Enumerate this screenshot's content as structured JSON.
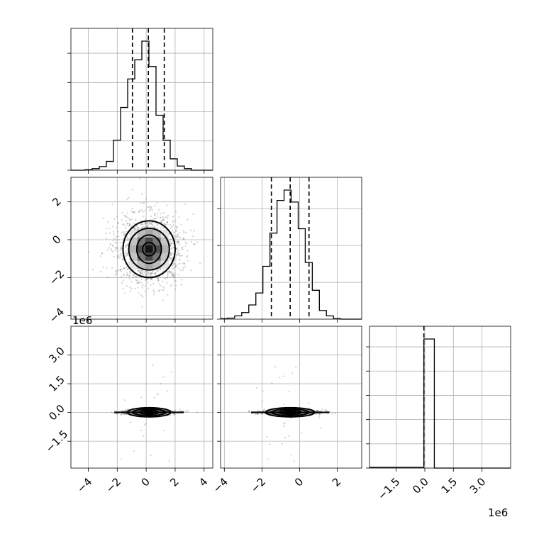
{
  "chart_data": {
    "type": "corner",
    "n_params": 3,
    "grid": true,
    "quantile_lines": "dashed",
    "axes": {
      "p0": {
        "range": [
          -5.2,
          4.6
        ],
        "ticks": [
          "−4",
          "−2",
          "0",
          "2",
          "4"
        ],
        "tick_values": [
          -4,
          -2,
          0,
          2,
          4
        ]
      },
      "p1": {
        "range": [
          -4.2,
          3.3
        ],
        "ticks": [
          "−4",
          "−2",
          "0",
          "2"
        ],
        "tick_values": [
          -4,
          -2,
          0,
          2
        ]
      },
      "p2": {
        "range": [
          -2.9,
          4.5
        ],
        "ticks": [
          "−1.5",
          "0.0",
          "1.5",
          "3.0"
        ],
        "tick_values": [
          -1.5,
          0.0,
          1.5,
          3.0
        ],
        "offset_text": "1e6"
      }
    },
    "histograms": [
      {
        "param": "p0",
        "bin_edges": [
          -5.2,
          -4.71,
          -4.22,
          -3.73,
          -3.24,
          -2.75,
          -2.26,
          -1.77,
          -1.28,
          -0.79,
          -0.3,
          0.19,
          0.68,
          1.17,
          1.66,
          2.15,
          2.64,
          3.13,
          3.62,
          4.11,
          4.6
        ],
        "counts": [
          0,
          0,
          1,
          3,
          7,
          17,
          58,
          121,
          176,
          213,
          249,
          200,
          106,
          58,
          22,
          8,
          3,
          0,
          0,
          0
        ],
        "quantiles": [
          -0.95,
          0.15,
          1.25
        ],
        "yticks": 5
      },
      {
        "param": "p1",
        "bin_edges": [
          -4.2,
          -3.825,
          -3.45,
          -3.075,
          -2.7,
          -2.325,
          -1.95,
          -1.575,
          -1.2,
          -0.825,
          -0.45,
          -0.075,
          0.3,
          0.675,
          1.05,
          1.425,
          1.8,
          2.175,
          2.55,
          2.925,
          3.3
        ],
        "counts": [
          1,
          2,
          6,
          12,
          26,
          48,
          97,
          158,
          218,
          237,
          215,
          166,
          104,
          53,
          16,
          6,
          1,
          0,
          0,
          0
        ],
        "quantiles": [
          -1.5,
          -0.5,
          0.5
        ],
        "yticks": 4
      },
      {
        "param": "p2",
        "bin_edges": [
          -2.9,
          -0.05,
          0.5,
          4.5
        ],
        "counts": [
          3,
          500,
          0
        ],
        "quantiles": [
          -0.05
        ],
        "yticks": 6
      }
    ],
    "joint": [
      {
        "x": "p0",
        "y": "p1",
        "center": [
          0.2,
          -0.5
        ],
        "contour_widths": [
          [
            1.8,
            1.5
          ],
          [
            1.4,
            1.1
          ],
          [
            0.85,
            0.75
          ],
          [
            0.45,
            0.35
          ]
        ]
      },
      {
        "x": "p0",
        "y": "p2",
        "center": [
          0.2,
          0.01
        ],
        "contour_widths": [
          [
            1.5,
            0.24
          ],
          [
            1.15,
            0.17
          ],
          [
            0.65,
            0.11
          ],
          [
            0.3,
            0.06
          ]
        ]
      },
      {
        "x": "p1",
        "y": "p2",
        "center": [
          -0.5,
          0.01
        ],
        "contour_widths": [
          [
            1.3,
            0.24
          ],
          [
            1.0,
            0.17
          ],
          [
            0.6,
            0.11
          ],
          [
            0.3,
            0.06
          ]
        ]
      }
    ]
  }
}
